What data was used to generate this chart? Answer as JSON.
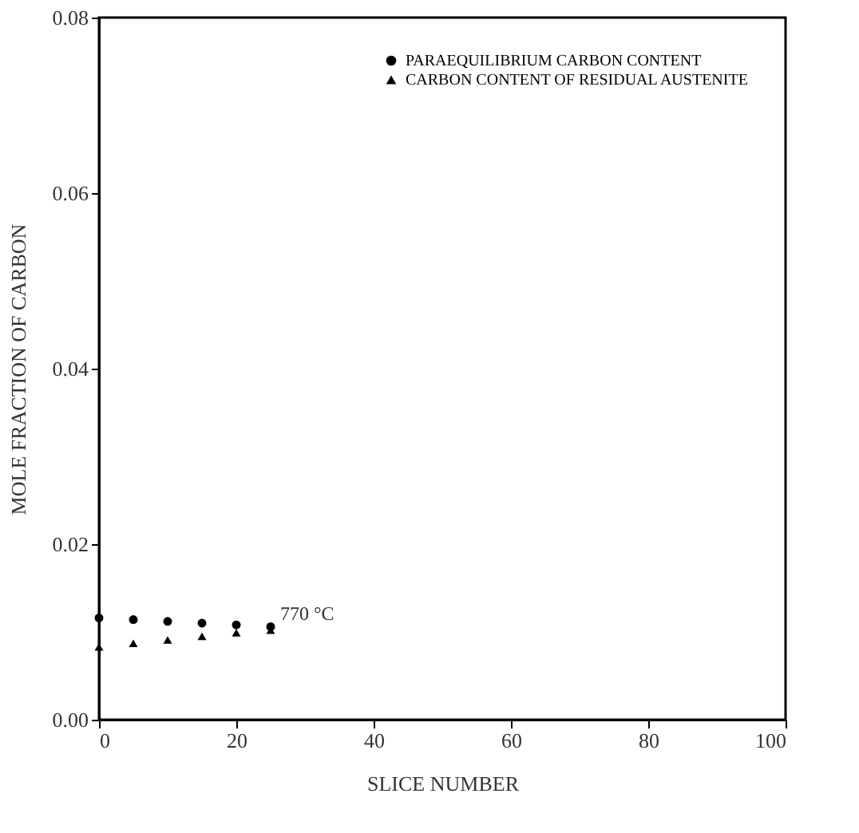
{
  "chart_data": {
    "type": "scatter",
    "xlabel": "SLICE NUMBER",
    "ylabel": "MOLE FRACTION OF CARBON",
    "x": [
      0,
      5,
      10,
      15,
      20,
      25
    ],
    "series": [
      {
        "name": "PARAEQUILIBRIUM CARBON CONTENT",
        "color": "#000000",
        "marker": "circle",
        "values": [
          0.0116,
          0.0114,
          0.0112,
          0.011,
          0.0108,
          0.0106
        ]
      },
      {
        "name": "CARBON CONTENT OF RESIDUAL AUSTENITE",
        "color": "#000000",
        "marker": "triangle",
        "values": [
          0.0083,
          0.0087,
          0.0091,
          0.0095,
          0.0099,
          0.0102
        ]
      }
    ],
    "xlim": [
      0,
      100
    ],
    "xticks": [
      0,
      20,
      40,
      60,
      80,
      100
    ],
    "ylim": [
      0,
      0.08
    ],
    "yticks": [
      {
        "value": 0,
        "label": "0.00"
      },
      {
        "value": 0.02,
        "label": "0.02"
      },
      {
        "value": 0.04,
        "label": "0.04"
      },
      {
        "value": 0.06,
        "label": "0.06"
      },
      {
        "value": 0.08,
        "label": "0.08"
      }
    ],
    "annotations": [
      {
        "text": "770 °C",
        "x": 25,
        "y": 0.0106
      }
    ],
    "legend": "top right",
    "grid": false
  }
}
